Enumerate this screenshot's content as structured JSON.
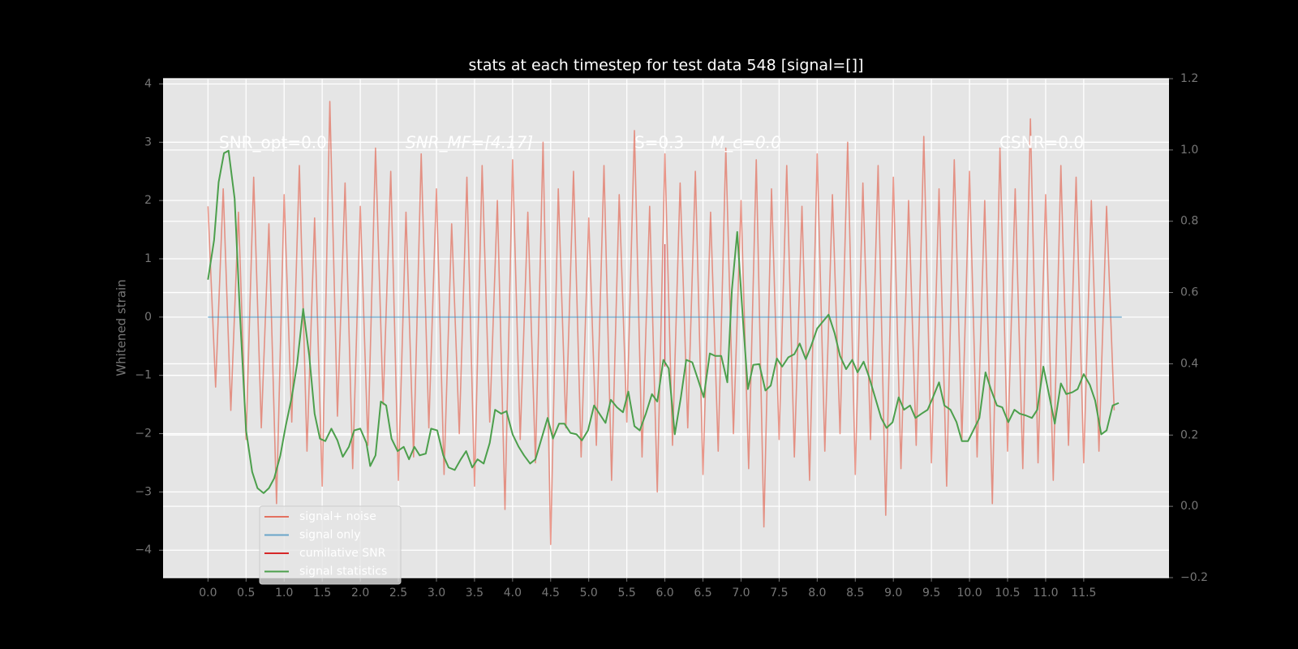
{
  "chart_data": {
    "type": "line",
    "title": "stats at each timestep for test data 548 [signal=[]]",
    "ylabel": "Whitened strain",
    "annotations": [
      "SNR_opt=0.0",
      "SNR_MF=[4.17]",
      "S=0.3",
      "M_c=0.0",
      "CSNR=0.0"
    ],
    "xlim": [
      -0.59,
      12.62
    ],
    "xticks": [
      {
        "value": 0,
        "label": "0.0"
      },
      0.5,
      {
        "value": 1,
        "label": "1.0"
      },
      1.5,
      {
        "value": 2,
        "label": "2.0"
      },
      2.5,
      {
        "value": 3,
        "label": "3.0"
      },
      3.5,
      {
        "value": 4,
        "label": "4.0"
      },
      4.5,
      {
        "value": 5,
        "label": "5.0"
      },
      5.5,
      {
        "value": 6,
        "label": "6.0"
      },
      6.5,
      {
        "value": 7,
        "label": "7.0"
      },
      7.5,
      {
        "value": 8,
        "label": "8.0"
      },
      8.5,
      {
        "value": 9,
        "label": "9.0"
      },
      9.5,
      {
        "value": 10,
        "label": "10.0"
      },
      10.5,
      {
        "value": 11,
        "label": "11.0"
      },
      11.5
    ],
    "ylim": [
      -4.47,
      4.09
    ],
    "yticks": [
      {
        "value": -4,
        "label": "−4"
      },
      {
        "value": -3,
        "label": "−3"
      },
      {
        "value": -2,
        "label": "−2"
      },
      {
        "value": -1,
        "label": "−1"
      },
      0,
      1,
      2,
      3,
      4
    ],
    "y2lim": [
      -0.2,
      1.2
    ],
    "y2ticks": [
      {
        "value": -0.2,
        "label": "−0.2"
      },
      {
        "value": 0,
        "label": "0.0"
      },
      0.2,
      0.4,
      0.6,
      0.8,
      {
        "value": 1,
        "label": "1.0"
      },
      1.2
    ],
    "grid": true,
    "legend": "lower left",
    "series": [
      {
        "name": "signal+ noise",
        "color": "#E24A33",
        "x": [
          0,
          0.1,
          0.2,
          0.3,
          0.4,
          0.5,
          0.6,
          0.7,
          0.8,
          0.9,
          1,
          1.1,
          1.2,
          1.3,
          1.4,
          1.5,
          1.6,
          1.7,
          1.8,
          1.9,
          2,
          2.1,
          2.2,
          2.3,
          2.4,
          2.5,
          2.6,
          2.7,
          2.8,
          2.9,
          3,
          3.1,
          3.2,
          3.3,
          3.4,
          3.5,
          3.6,
          3.7,
          3.8,
          3.9,
          4,
          4.1,
          4.2,
          4.3,
          4.4,
          4.5,
          4.6,
          4.7,
          4.8,
          4.9,
          5,
          5.1,
          5.2,
          5.3,
          5.4,
          5.5,
          5.6,
          5.7,
          5.8,
          5.9,
          6,
          6.1,
          6.2,
          6.3,
          6.4,
          6.5,
          6.6,
          6.7,
          6.8,
          6.9,
          7,
          7.1,
          7.2,
          7.3,
          7.4,
          7.5,
          7.6,
          7.7,
          7.8,
          7.9,
          8,
          8.1,
          8.2,
          8.3,
          8.4,
          8.5,
          8.6,
          8.7,
          8.8,
          8.9,
          9,
          9.1,
          9.2,
          9.3,
          9.4,
          9.5,
          9.6,
          9.7,
          9.8,
          9.9,
          10,
          10.1,
          10.2,
          10.3,
          10.4,
          10.5,
          10.6,
          10.7,
          10.8,
          10.9,
          11,
          11.1,
          11.2,
          11.3,
          11.4,
          11.5,
          11.6,
          11.7,
          11.8,
          11.9
        ],
        "values": [
          1.9,
          -1.2,
          2.2,
          -1.6,
          1.8,
          -2.1,
          2.4,
          -1.9,
          1.6,
          -3.2,
          2.1,
          -1.8,
          2.6,
          -2.3,
          1.7,
          -2.9,
          3.7,
          -1.7,
          2.3,
          -2.6,
          1.9,
          -2.2,
          2.9,
          -1.5,
          2.5,
          -2.8,
          1.8,
          -2.4,
          2.8,
          -1.9,
          2.2,
          -2.7,
          1.6,
          -2.0,
          2.4,
          -2.9,
          2.6,
          -1.8,
          2.0,
          -3.3,
          2.7,
          -2.1,
          1.8,
          -2.5,
          3.0,
          -3.9,
          2.2,
          -1.9,
          2.5,
          -2.4,
          1.7,
          -2.2,
          2.6,
          -2.8,
          2.1,
          -1.8,
          3.2,
          -2.4,
          1.9,
          -3.0,
          2.8,
          -2.2,
          2.3,
          -1.9,
          2.5,
          -2.7,
          1.8,
          -2.3,
          2.9,
          -2.0,
          2.0,
          -2.6,
          2.7,
          -3.6,
          2.2,
          -2.1,
          2.6,
          -2.4,
          1.9,
          -2.8,
          2.8,
          -2.3,
          2.1,
          -2.0,
          3.0,
          -2.7,
          2.3,
          -2.1,
          2.6,
          -3.4,
          2.4,
          -2.6,
          2.0,
          -2.2,
          3.1,
          -2.5,
          2.2,
          -2.9,
          2.7,
          -2.1,
          2.5,
          -2.4,
          2.0,
          -3.2,
          2.9,
          -2.3,
          2.2,
          -2.6,
          3.4,
          -2.5,
          2.1,
          -2.8,
          2.6,
          -2.2,
          2.4,
          -2.5,
          2.0,
          -2.3,
          1.9,
          -1.6
        ]
      },
      {
        "name": "signal only",
        "color": "#348ABD",
        "x": [
          0,
          12
        ],
        "values": [
          0,
          0
        ]
      },
      {
        "name": "cumilative SNR",
        "color": "#d62728",
        "x": [
          6,
          6
        ],
        "values": [
          1.25,
          -0.85
        ]
      },
      {
        "name": "signal statistics",
        "color": "#4c9f4c",
        "axis": "y2",
        "x": [
          0,
          0.08,
          0.14,
          0.21,
          0.27,
          0.35,
          0.42,
          0.5,
          0.58,
          0.65,
          0.73,
          0.8,
          0.87,
          0.95,
          1.02,
          1.1,
          1.17,
          1.25,
          1.33,
          1.4,
          1.47,
          1.54,
          1.62,
          1.7,
          1.77,
          1.85,
          1.92,
          2,
          2.08,
          2.13,
          2.2,
          2.27,
          2.34,
          2.41,
          2.49,
          2.57,
          2.64,
          2.71,
          2.78,
          2.86,
          2.93,
          3.01,
          3.09,
          3.16,
          3.24,
          3.32,
          3.39,
          3.47,
          3.54,
          3.62,
          3.7,
          3.77,
          3.85,
          3.92,
          4,
          4.08,
          4.15,
          4.23,
          4.3,
          4.38,
          4.46,
          4.53,
          4.61,
          4.68,
          4.76,
          4.84,
          4.91,
          4.99,
          5.07,
          5.14,
          5.22,
          5.29,
          5.37,
          5.45,
          5.52,
          5.6,
          5.67,
          5.75,
          5.83,
          5.9,
          5.98,
          6.05,
          6.13,
          6.21,
          6.28,
          6.36,
          6.43,
          6.51,
          6.59,
          6.66,
          6.74,
          6.82,
          6.88,
          6.95,
          7.02,
          7.09,
          7.16,
          7.24,
          7.32,
          7.39,
          7.47,
          7.54,
          7.62,
          7.7,
          7.77,
          7.85,
          7.92,
          8,
          8.08,
          8.15,
          8.23,
          8.3,
          8.38,
          8.46,
          8.53,
          8.61,
          8.68,
          8.76,
          8.84,
          8.91,
          8.99,
          9.07,
          9.14,
          9.22,
          9.29,
          9.37,
          9.45,
          9.52,
          9.6,
          9.67,
          9.75,
          9.83,
          9.9,
          9.98,
          10.05,
          10.13,
          10.21,
          10.28,
          10.36,
          10.43,
          10.51,
          10.59,
          10.66,
          10.74,
          10.82,
          10.89,
          10.97,
          11.04,
          11.12,
          11.2,
          11.27,
          11.35,
          11.42,
          11.5,
          11.58,
          11.65,
          11.73,
          11.8,
          11.88,
          11.96
        ],
        "values": [
          0.636,
          0.747,
          0.91,
          0.991,
          0.998,
          0.863,
          0.538,
          0.213,
          0.097,
          0.051,
          0.037,
          0.051,
          0.079,
          0.143,
          0.225,
          0.306,
          0.399,
          0.554,
          0.422,
          0.26,
          0.19,
          0.183,
          0.218,
          0.185,
          0.139,
          0.167,
          0.213,
          0.218,
          0.178,
          0.113,
          0.143,
          0.294,
          0.283,
          0.19,
          0.155,
          0.167,
          0.132,
          0.167,
          0.143,
          0.148,
          0.218,
          0.213,
          0.143,
          0.109,
          0.102,
          0.132,
          0.155,
          0.109,
          0.132,
          0.12,
          0.178,
          0.271,
          0.26,
          0.267,
          0.202,
          0.167,
          0.143,
          0.12,
          0.132,
          0.19,
          0.248,
          0.19,
          0.232,
          0.232,
          0.206,
          0.202,
          0.185,
          0.213,
          0.283,
          0.26,
          0.234,
          0.299,
          0.278,
          0.264,
          0.322,
          0.225,
          0.213,
          0.26,
          0.315,
          0.294,
          0.411,
          0.387,
          0.202,
          0.306,
          0.411,
          0.404,
          0.359,
          0.306,
          0.429,
          0.422,
          0.422,
          0.348,
          0.608,
          0.77,
          0.538,
          0.329,
          0.397,
          0.399,
          0.325,
          0.339,
          0.415,
          0.392,
          0.418,
          0.427,
          0.457,
          0.413,
          0.45,
          0.499,
          0.52,
          0.538,
          0.485,
          0.422,
          0.385,
          0.411,
          0.376,
          0.406,
          0.364,
          0.306,
          0.248,
          0.22,
          0.236,
          0.306,
          0.271,
          0.283,
          0.248,
          0.26,
          0.271,
          0.306,
          0.348,
          0.283,
          0.271,
          0.236,
          0.183,
          0.183,
          0.213,
          0.248,
          0.376,
          0.329,
          0.283,
          0.278,
          0.236,
          0.271,
          0.26,
          0.255,
          0.248,
          0.271,
          0.392,
          0.318,
          0.232,
          0.345,
          0.315,
          0.32,
          0.329,
          0.371,
          0.341,
          0.297,
          0.202,
          0.213,
          0.283,
          0.29
        ]
      }
    ]
  }
}
